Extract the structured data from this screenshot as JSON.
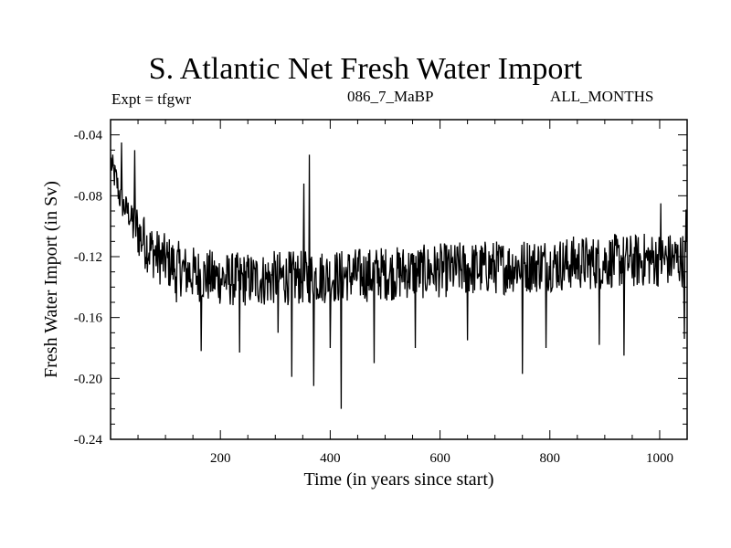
{
  "chart_data": {
    "type": "line",
    "title": "S. Atlantic Net Fresh Water Import",
    "expt_label": "Expt = tfgwr",
    "subtitle": "086_7_MaBP",
    "months_label": "ALL_MONTHS",
    "xlabel": "Time (in years since start)",
    "ylabel": "Fresh Water Import (in Sv)",
    "xlim": [
      0,
      1050
    ],
    "ylim": [
      -0.24,
      -0.03
    ],
    "x_ticks": [
      200,
      400,
      600,
      800,
      1000
    ],
    "x_tick_labels": [
      "200",
      "400",
      "600",
      "800",
      "1000"
    ],
    "y_ticks": [
      -0.04,
      -0.08,
      -0.12,
      -0.16,
      -0.2,
      -0.24
    ],
    "y_tick_labels": [
      "-0.04",
      "-0.08",
      "-0.12",
      "-0.16",
      "-0.20",
      "-0.24"
    ],
    "series": [
      {
        "name": "Net Fresh Water Import",
        "x_start": 1,
        "x_step": 5,
        "values": [
          -0.058,
          -0.066,
          -0.07,
          -0.08,
          -0.085,
          -0.088,
          -0.09,
          -0.094,
          -0.098,
          -0.1,
          -0.104,
          -0.108,
          -0.11,
          -0.112,
          -0.115,
          -0.116,
          -0.118,
          -0.12,
          -0.121,
          -0.122,
          -0.123,
          -0.124,
          -0.125,
          -0.126,
          -0.127,
          -0.128,
          -0.129,
          -0.13,
          -0.13,
          -0.131,
          -0.131,
          -0.132,
          -0.132,
          -0.132,
          -0.133,
          -0.133,
          -0.133,
          -0.134,
          -0.134,
          -0.134,
          -0.134,
          -0.134,
          -0.135,
          -0.135,
          -0.135,
          -0.135,
          -0.135,
          -0.135,
          -0.135,
          -0.135,
          -0.135,
          -0.135,
          -0.135,
          -0.135,
          -0.135,
          -0.135,
          -0.135,
          -0.135,
          -0.135,
          -0.134,
          -0.134,
          -0.134,
          -0.134,
          -0.134,
          -0.134,
          -0.134,
          -0.134,
          -0.134,
          -0.134,
          -0.134,
          -0.134,
          -0.134,
          -0.134,
          -0.133,
          -0.133,
          -0.133,
          -0.133,
          -0.133,
          -0.133,
          -0.133,
          -0.133,
          -0.133,
          -0.133,
          -0.133,
          -0.133,
          -0.132,
          -0.132,
          -0.132,
          -0.132,
          -0.132,
          -0.132,
          -0.132,
          -0.132,
          -0.132,
          -0.132,
          -0.132,
          -0.131,
          -0.131,
          -0.131,
          -0.131,
          -0.131,
          -0.131,
          -0.131,
          -0.131,
          -0.131,
          -0.131,
          -0.13,
          -0.13,
          -0.13,
          -0.13,
          -0.13,
          -0.13,
          -0.13,
          -0.13,
          -0.13,
          -0.13,
          -0.129,
          -0.129,
          -0.129,
          -0.129,
          -0.129,
          -0.129,
          -0.129,
          -0.129,
          -0.129,
          -0.129,
          -0.128,
          -0.128,
          -0.128,
          -0.128,
          -0.128,
          -0.128,
          -0.128,
          -0.128,
          -0.128,
          -0.128,
          -0.127,
          -0.127,
          -0.127,
          -0.127,
          -0.127,
          -0.127,
          -0.127,
          -0.127,
          -0.127,
          -0.127,
          -0.126,
          -0.126,
          -0.126,
          -0.126,
          -0.126,
          -0.126,
          -0.126,
          -0.126,
          -0.126,
          -0.126,
          -0.125,
          -0.125,
          -0.125,
          -0.125,
          -0.125,
          -0.125,
          -0.125,
          -0.125,
          -0.125,
          -0.125,
          -0.125,
          -0.124,
          -0.124,
          -0.124,
          -0.124,
          -0.124,
          -0.124,
          -0.124,
          -0.124,
          -0.124,
          -0.124,
          -0.124,
          -0.124,
          -0.124,
          -0.123,
          -0.123,
          -0.123,
          -0.123,
          -0.123,
          -0.123,
          -0.123,
          -0.123,
          -0.123,
          -0.123,
          -0.123,
          -0.123,
          -0.123,
          -0.123,
          -0.122,
          -0.122,
          -0.122,
          -0.122,
          -0.122,
          -0.122,
          -0.122,
          -0.122,
          -0.122,
          -0.122
        ],
        "spikes": [
          [
            20,
            -0.045
          ],
          [
            44,
            -0.05
          ],
          [
            60,
            -0.096
          ],
          [
            120,
            -0.15
          ],
          [
            165,
            -0.182
          ],
          [
            235,
            -0.183
          ],
          [
            305,
            -0.17
          ],
          [
            330,
            -0.199
          ],
          [
            352,
            -0.072
          ],
          [
            362,
            -0.053
          ],
          [
            370,
            -0.205
          ],
          [
            400,
            -0.18
          ],
          [
            420,
            -0.22
          ],
          [
            480,
            -0.19
          ],
          [
            555,
            -0.18
          ],
          [
            650,
            -0.175
          ],
          [
            750,
            -0.197
          ],
          [
            793,
            -0.18
          ],
          [
            890,
            -0.178
          ],
          [
            935,
            -0.185
          ],
          [
            1002,
            -0.085
          ],
          [
            1045,
            -0.174
          ],
          [
            1048,
            -0.089
          ]
        ],
        "noise_amplitude": 0.018,
        "color": "#000000"
      }
    ]
  }
}
